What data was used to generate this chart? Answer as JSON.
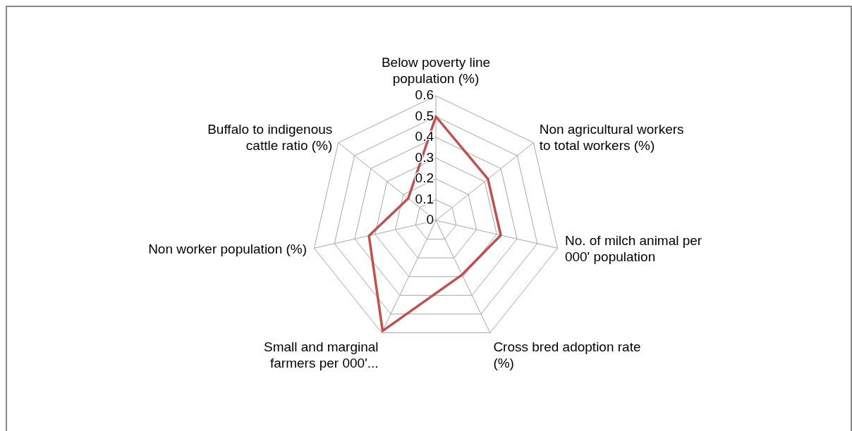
{
  "chart_data": {
    "type": "radar",
    "categories": [
      "Below poverty line population (%)",
      "Non agricultural workers to total workers (%)",
      "No. of milch animal per 000' population",
      "Cross bred adoption rate (%)",
      "Small and marginal farmers per 000'...",
      "Non worker population (%)",
      "Buffalo to indigenous cattle ratio (%)"
    ],
    "series": [
      {
        "color": "#c0504d",
        "values": [
          0.5,
          0.32,
          0.32,
          0.29,
          0.59,
          0.33,
          0.17
        ]
      }
    ],
    "ylim": [
      0,
      0.6
    ],
    "yticks": [
      0,
      0.1,
      0.2,
      0.3,
      0.4,
      0.5,
      0.6
    ],
    "grid": true,
    "marker": "none",
    "line_style": "solid"
  }
}
